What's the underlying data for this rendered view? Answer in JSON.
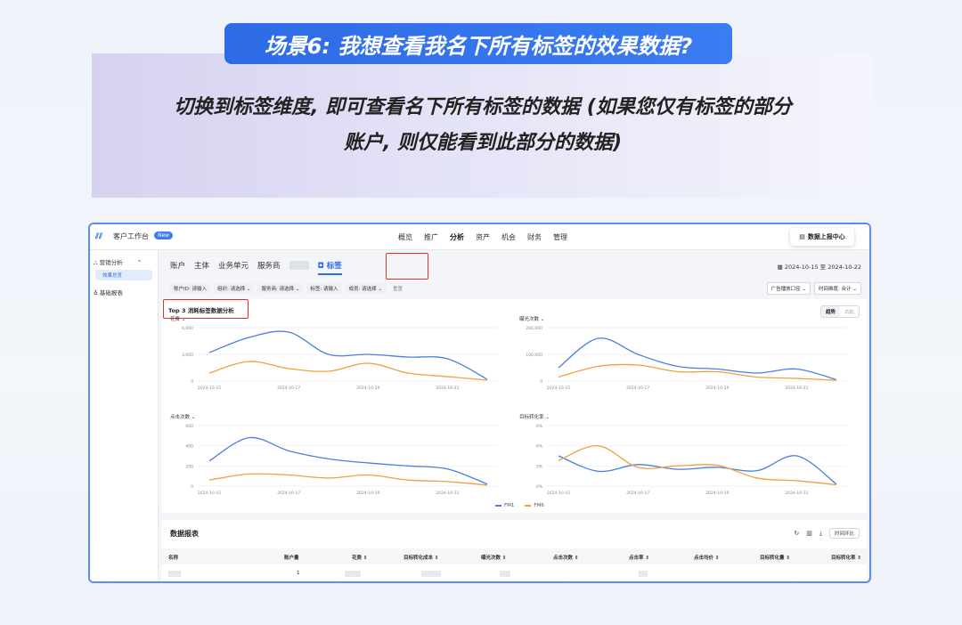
{
  "banner": {
    "title": "场景6: 我想查看我名下所有标签的效果数据?",
    "desc_line1": "切换到标签维度, 即可查看名下所有标签的数据 (如果您仅有标签的部分",
    "desc_line2": "账户, 则仅能看到此部分的数据)"
  },
  "topbar": {
    "app_title": "客户工作台",
    "new_badge": "New",
    "nav": [
      "概览",
      "推广",
      "分析",
      "资产",
      "机会",
      "财务",
      "管理"
    ],
    "active_nav": "分析",
    "report_center": "数据上报中心"
  },
  "sidebar": {
    "group1": "营销分析",
    "group1_sub": "效果总览",
    "group2": "基础报表"
  },
  "tabs": {
    "items": [
      "账户",
      "主体",
      "业务单元",
      "服务商"
    ],
    "tag_tab": "标签"
  },
  "date_range": "2024-10-15 至 2024-10-22",
  "filters": [
    "账户ID: 请输入",
    "组织: 请选择 ⌄",
    "服务商: 请选择 ⌄",
    "标签: 请输入",
    "成员: 请选择 ⌄"
  ],
  "filters_reset": "重置",
  "right_filters": [
    "广告播放口径 ⌄",
    "时间维度: 合计 ⌄"
  ],
  "panel": {
    "title": "Top 3 消耗标签数据分析",
    "toggle_on": "趋势",
    "toggle_off": "占比"
  },
  "legend": [
    "FM1",
    "FM6"
  ],
  "colors": {
    "fm1": "#4a7fe0",
    "fm6": "#f0a040",
    "accent": "#2e6be6",
    "highlight": "#e0302a"
  },
  "chart_data": [
    {
      "type": "line",
      "title": "花费 ⌄",
      "x": [
        "2024-10-15",
        "2024-10-16",
        "2024-10-17",
        "2024-10-18",
        "2024-10-19",
        "2024-10-20",
        "2024-10-21",
        "2024-10-22"
      ],
      "xticks": [
        "2024-10-15",
        "2024-10-17",
        "2024-10-19",
        "2024-10-21"
      ],
      "yticks": [
        "6,000",
        "3,000",
        "0"
      ],
      "ylim": [
        0,
        6000
      ],
      "series": [
        {
          "name": "FM1",
          "values": [
            3200,
            4900,
            5500,
            3000,
            3000,
            2700,
            2500,
            200
          ]
        },
        {
          "name": "FM6",
          "values": [
            900,
            2200,
            1400,
            1100,
            2000,
            900,
            500,
            100
          ]
        }
      ]
    },
    {
      "type": "line",
      "title": "曝光次数 ⌄",
      "x": [
        "2024-10-15",
        "2024-10-16",
        "2024-10-17",
        "2024-10-18",
        "2024-10-19",
        "2024-10-20",
        "2024-10-21",
        "2024-10-22"
      ],
      "xticks": [
        "2024-10-15",
        "2024-10-17",
        "2024-10-19",
        "2024-10-21"
      ],
      "yticks": [
        "200,000",
        "100,000",
        "0"
      ],
      "ylim": [
        0,
        200000
      ],
      "series": [
        {
          "name": "FM1",
          "values": [
            50000,
            160000,
            100000,
            55000,
            45000,
            30000,
            45000,
            5000
          ]
        },
        {
          "name": "FM6",
          "values": [
            15000,
            55000,
            60000,
            35000,
            35000,
            15000,
            10000,
            3000
          ]
        }
      ]
    },
    {
      "type": "line",
      "title": "点击次数 ⌄",
      "x": [
        "2024-10-15",
        "2024-10-16",
        "2024-10-17",
        "2024-10-18",
        "2024-10-19",
        "2024-10-20",
        "2024-10-21",
        "2024-10-22"
      ],
      "xticks": [
        "2024-10-15",
        "2024-10-17",
        "2024-10-19",
        "2024-10-21"
      ],
      "yticks": [
        "600",
        "400",
        "200",
        "0"
      ],
      "ylim": [
        0,
        600
      ],
      "series": [
        {
          "name": "FM1",
          "values": [
            250,
            480,
            350,
            270,
            230,
            200,
            170,
            20
          ]
        },
        {
          "name": "FM6",
          "values": [
            60,
            120,
            110,
            80,
            110,
            60,
            45,
            10
          ]
        }
      ]
    },
    {
      "type": "line",
      "title": "目标转化率 ⌄",
      "x": [
        "2024-10-15",
        "2024-10-16",
        "2024-10-17",
        "2024-10-18",
        "2024-10-19",
        "2024-10-20",
        "2024-10-21",
        "2024-10-22"
      ],
      "xticks": [
        "2024-10-15",
        "2024-10-17",
        "2024-10-19",
        "2024-10-21"
      ],
      "yticks": [
        "9%",
        "6%",
        "3%",
        "0%"
      ],
      "ylim": [
        0,
        9
      ],
      "series": [
        {
          "name": "FM1",
          "values": [
            4.5,
            2.2,
            3.2,
            2.5,
            2.8,
            2.3,
            4.5,
            0.3
          ]
        },
        {
          "name": "FM6",
          "values": [
            3.8,
            6.0,
            2.8,
            3.0,
            3.1,
            1.2,
            0.8,
            0.2
          ]
        }
      ]
    }
  ],
  "report": {
    "title": "数据报表",
    "compare_btn": "时间环比",
    "columns": [
      "名称",
      "账户量",
      "花费 ⇕",
      "目标转化成本 ⇕",
      "曝光次数 ⇕",
      "点击次数 ⇕",
      "点击率 ⇕",
      "点击均价 ⇕",
      "目标转化量 ⇕",
      "目标转化率 ⇕"
    ],
    "row1_accounts": "1"
  }
}
